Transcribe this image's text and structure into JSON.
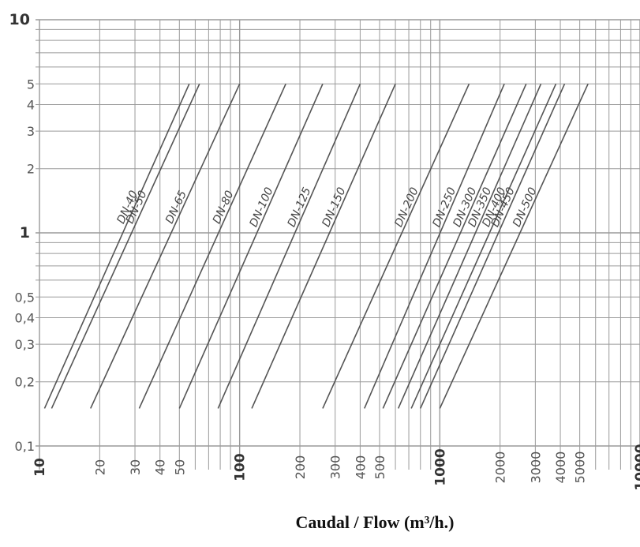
{
  "chart_data": {
    "type": "line",
    "title": "",
    "xlabel": "Caudal / Flow (m³/h.)",
    "ylabel": "",
    "x_scale": "log",
    "y_scale": "log",
    "xlim": [
      10,
      10000
    ],
    "ylim": [
      0.1,
      10
    ],
    "grid": true,
    "x_ticks": [
      {
        "value": 10,
        "label": "10",
        "major": true
      },
      {
        "value": 20,
        "label": "20",
        "major": false
      },
      {
        "value": 30,
        "label": "30",
        "major": false
      },
      {
        "value": 40,
        "label": "40",
        "major": false
      },
      {
        "value": 50,
        "label": "50",
        "major": false
      },
      {
        "value": 100,
        "label": "100",
        "major": true
      },
      {
        "value": 200,
        "label": "200",
        "major": false
      },
      {
        "value": 300,
        "label": "300",
        "major": false
      },
      {
        "value": 400,
        "label": "400",
        "major": false
      },
      {
        "value": 500,
        "label": "500",
        "major": false
      },
      {
        "value": 1000,
        "label": "1000",
        "major": true
      },
      {
        "value": 2000,
        "label": "2000",
        "major": false
      },
      {
        "value": 3000,
        "label": "3000",
        "major": false
      },
      {
        "value": 4000,
        "label": "4000",
        "major": false
      },
      {
        "value": 5000,
        "label": "5000",
        "major": false
      },
      {
        "value": 10000,
        "label": "10000",
        "major": true
      }
    ],
    "y_ticks": [
      {
        "value": 0.1,
        "label": "0,1",
        "major": false
      },
      {
        "value": 0.2,
        "label": "0,2",
        "major": false
      },
      {
        "value": 0.3,
        "label": "0,3",
        "major": false
      },
      {
        "value": 0.4,
        "label": "0,4",
        "major": false
      },
      {
        "value": 0.5,
        "label": "0,5",
        "major": false
      },
      {
        "value": 1,
        "label": "1",
        "major": true
      },
      {
        "value": 2,
        "label": "2",
        "major": false
      },
      {
        "value": 3,
        "label": "3",
        "major": false
      },
      {
        "value": 4,
        "label": "4",
        "major": false
      },
      {
        "value": 5,
        "label": "5",
        "major": false
      },
      {
        "value": 10,
        "label": "10",
        "major": true
      }
    ],
    "series": [
      {
        "name": "DN-40",
        "x": [
          10.6,
          56
        ],
        "y": [
          0.15,
          5
        ]
      },
      {
        "name": "DN-50",
        "x": [
          11.5,
          63
        ],
        "y": [
          0.15,
          5
        ]
      },
      {
        "name": "DN-65",
        "x": [
          18,
          100
        ],
        "y": [
          0.15,
          5
        ]
      },
      {
        "name": "DN-80",
        "x": [
          31.5,
          170
        ],
        "y": [
          0.15,
          5
        ]
      },
      {
        "name": "DN-100",
        "x": [
          50,
          260
        ],
        "y": [
          0.15,
          5
        ]
      },
      {
        "name": "DN-125",
        "x": [
          78,
          400
        ],
        "y": [
          0.15,
          5
        ]
      },
      {
        "name": "DN-150",
        "x": [
          115,
          600
        ],
        "y": [
          0.15,
          5
        ]
      },
      {
        "name": "DN-200",
        "x": [
          260,
          1400
        ],
        "y": [
          0.15,
          5
        ]
      },
      {
        "name": "DN-250",
        "x": [
          420,
          2100
        ],
        "y": [
          0.15,
          5
        ]
      },
      {
        "name": "DN-300",
        "x": [
          520,
          2700
        ],
        "y": [
          0.15,
          5
        ]
      },
      {
        "name": "DN-350",
        "x": [
          620,
          3200
        ],
        "y": [
          0.15,
          5
        ]
      },
      {
        "name": "DN-400",
        "x": [
          720,
          3800
        ],
        "y": [
          0.15,
          5
        ]
      },
      {
        "name": "DN-450",
        "x": [
          800,
          4200
        ],
        "y": [
          0.15,
          5
        ]
      },
      {
        "name": "DN-500",
        "x": [
          1000,
          5500
        ],
        "y": [
          0.15,
          5
        ]
      }
    ],
    "colors": {
      "grid": "#9a9a9a",
      "line": "#555555",
      "text": "#333333"
    }
  }
}
